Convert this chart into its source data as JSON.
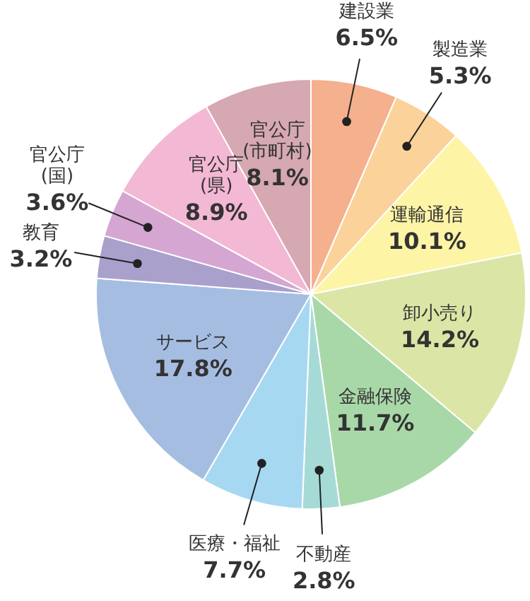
{
  "chart_data": {
    "type": "pie",
    "categories": [
      "建設業",
      "製造業",
      "運輸通信",
      "卸小売り",
      "金融保険",
      "不動産",
      "医療・福祉",
      "サービス",
      "教育",
      "官公庁\n(国)",
      "官公庁\n(県)",
      "官公庁\n(市町村)"
    ],
    "values": [
      6.5,
      5.3,
      10.1,
      14.2,
      11.7,
      2.8,
      7.7,
      17.8,
      3.2,
      3.6,
      8.9,
      8.1
    ],
    "colors": [
      "#f5b08e",
      "#fbd39a",
      "#fdf4a6",
      "#dbe6a6",
      "#a9d8a8",
      "#a6dad6",
      "#a6d8f2",
      "#a6bde2",
      "#a9a0cc",
      "#d6a6d2",
      "#f3b8d3",
      "#d6a8b2"
    ],
    "value_labels": [
      "6.5%",
      "5.3%",
      "10.1%",
      "14.2%",
      "11.7%",
      "2.8%",
      "7.7%",
      "17.8%",
      "3.2%",
      "3.6%",
      "8.9%",
      "8.1%"
    ]
  }
}
